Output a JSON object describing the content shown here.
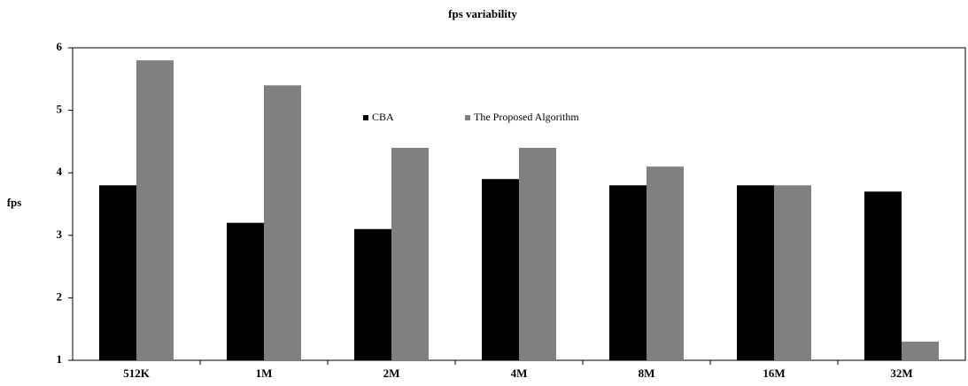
{
  "chart_data": {
    "type": "bar",
    "title": "fps variability",
    "y_label": "fps",
    "categories": [
      "512K",
      "1M",
      "2M",
      "4M",
      "8M",
      "16M",
      "32M"
    ],
    "series": [
      {
        "name": "CBA",
        "color": "#000000",
        "values": [
          3.8,
          3.2,
          3.1,
          3.9,
          3.8,
          3.8,
          3.7
        ]
      },
      {
        "name": "The Proposed Algorithm",
        "color": "#808080",
        "values": [
          5.8,
          5.4,
          4.4,
          4.4,
          4.1,
          3.8,
          1.3
        ]
      }
    ],
    "ylim": [
      1,
      6
    ],
    "yticks": [
      1,
      2,
      3,
      4,
      5,
      6
    ],
    "grid": false
  }
}
